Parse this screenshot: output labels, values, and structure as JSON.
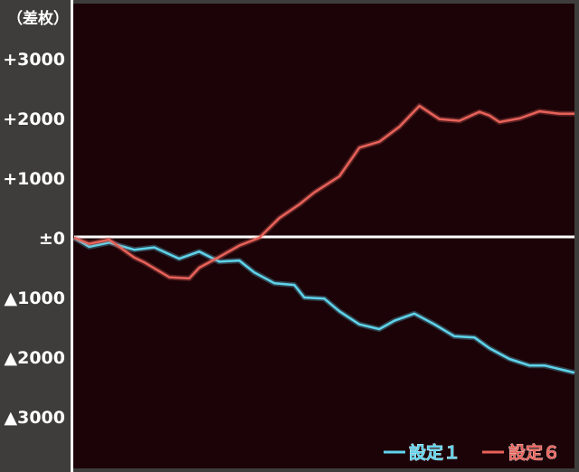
{
  "chart_data": {
    "type": "line",
    "ylabel": "（差枚）",
    "ylim": [
      -3000,
      3000
    ],
    "yticks": [
      {
        "value": 3000,
        "label": "+3000"
      },
      {
        "value": 2000,
        "label": "+2000"
      },
      {
        "value": 1000,
        "label": "+1000"
      },
      {
        "value": 0,
        "label": "±0"
      },
      {
        "value": -1000,
        "label": "▲1000"
      },
      {
        "value": -2000,
        "label": "▲2000"
      },
      {
        "value": -3000,
        "label": "▲3000"
      }
    ],
    "xlim": [
      0,
      100
    ],
    "zero_line": true,
    "grid": false,
    "legend_position": "bottom-right",
    "series": [
      {
        "name": "設定１",
        "color": "#5fd4ec",
        "x": [
          0,
          3,
          7,
          12,
          16,
          21,
          25,
          29,
          33,
          36,
          40,
          44,
          46,
          50,
          53,
          57,
          61,
          64,
          68,
          72,
          76,
          80,
          83,
          87,
          91,
          94,
          98,
          100
        ],
        "y": [
          0,
          -150,
          -80,
          -200,
          -160,
          -350,
          -230,
          -400,
          -380,
          -580,
          -760,
          -790,
          -1000,
          -1020,
          -1230,
          -1450,
          -1530,
          -1390,
          -1270,
          -1450,
          -1650,
          -1670,
          -1850,
          -2030,
          -2140,
          -2140,
          -2220,
          -2260
        ]
      },
      {
        "name": "設定６",
        "color": "#e8625a",
        "x": [
          0,
          3,
          7,
          12,
          14,
          19,
          23,
          25,
          29,
          33,
          37,
          41,
          45,
          48,
          53,
          57,
          61,
          65,
          69,
          73,
          77,
          81,
          83,
          85,
          89,
          93,
          97,
          100
        ],
        "y": [
          0,
          -100,
          -30,
          -330,
          -410,
          -660,
          -680,
          -500,
          -320,
          -130,
          0,
          330,
          560,
          760,
          1030,
          1510,
          1610,
          1860,
          2210,
          1990,
          1960,
          2110,
          2050,
          1940,
          2000,
          2120,
          2080,
          2080
        ]
      }
    ]
  }
}
